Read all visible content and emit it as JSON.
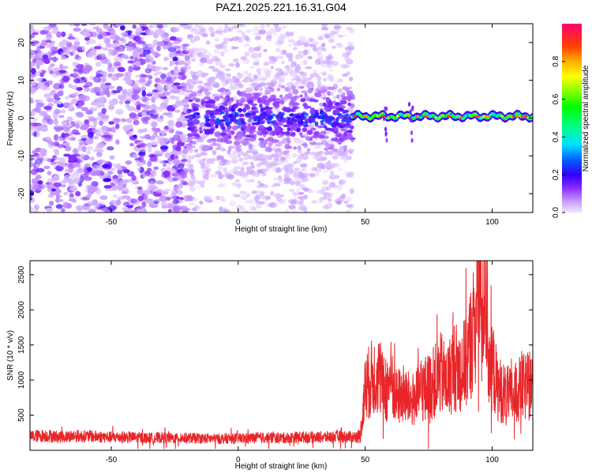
{
  "figure_title": "PAZ1.2025.221.16.31.G04",
  "chart_data": [
    {
      "type": "heatmap",
      "title": "PAZ1.2025.221.16.31.G04",
      "xlabel": "Height of straight line (km)",
      "ylabel": "Frequency (Hz)",
      "xlim": [
        -82,
        116
      ],
      "ylim": [
        -25,
        25
      ],
      "x_ticks": [
        -50,
        0,
        50,
        100
      ],
      "y_ticks": [
        -20,
        -10,
        0,
        10,
        20
      ],
      "colorbar": {
        "label": "Normalized spectral amplitude",
        "range": [
          0,
          1
        ],
        "ticks": [
          "0.0",
          "0.2",
          "0.4",
          "0.6",
          "0.8"
        ],
        "colormap": [
          "#e8d8ff",
          "#b070ff",
          "#6a00ff",
          "#0000ff",
          "#00ffff",
          "#00ff00",
          "#ffff00",
          "#ff8000",
          "#ff0000",
          "#ff0080"
        ]
      },
      "regions": [
        {
          "x_range": [
            -82,
            -20
          ],
          "freq_range": [
            -25,
            25
          ],
          "amplitude": "0.05-0.25",
          "description": "broadband noise"
        },
        {
          "x_range": [
            -20,
            45
          ],
          "freq_center": 0,
          "freq_spread": 6,
          "amplitude": "0.1-0.25",
          "description": "concentrated near 0 Hz over weak noise"
        },
        {
          "x_range": [
            45,
            116
          ],
          "freq_center": 0.5,
          "freq_spread": 1.5,
          "amplitude": "0.2-0.95",
          "description": "narrow strong signal band"
        }
      ],
      "grid": false
    },
    {
      "type": "line",
      "xlabel": "Height of straight line (km)",
      "ylabel": "SNR (10 * v/v)",
      "xlim": [
        -82,
        116
      ],
      "ylim": [
        0,
        2700
      ],
      "x_ticks": [
        -50,
        0,
        50,
        100
      ],
      "y_ticks": [
        500,
        1000,
        1500,
        2000,
        2500
      ],
      "color": "#e8262a",
      "x": [
        -82,
        -75,
        -70,
        -65,
        -60,
        -55,
        -50,
        -45,
        -40,
        -35,
        -30,
        -25,
        -20,
        -15,
        -10,
        -5,
        0,
        5,
        10,
        15,
        20,
        25,
        30,
        35,
        40,
        45,
        48,
        50,
        52,
        55,
        58,
        60,
        62,
        65,
        68,
        70,
        72,
        75,
        78,
        80,
        82,
        85,
        88,
        90,
        92,
        94,
        95,
        96,
        97,
        98,
        99,
        100,
        102,
        105,
        108,
        110,
        113,
        116
      ],
      "values": [
        200,
        210,
        190,
        205,
        200,
        195,
        185,
        190,
        180,
        175,
        180,
        170,
        175,
        170,
        165,
        165,
        170,
        175,
        180,
        175,
        180,
        190,
        185,
        190,
        195,
        190,
        200,
        900,
        1000,
        1100,
        800,
        1050,
        750,
        800,
        700,
        750,
        850,
        900,
        1000,
        1100,
        950,
        1200,
        1150,
        1300,
        1600,
        2000,
        2400,
        1800,
        2600,
        2000,
        1000,
        1250,
        900,
        800,
        750,
        850,
        900,
        900
      ],
      "grid": false
    }
  ]
}
